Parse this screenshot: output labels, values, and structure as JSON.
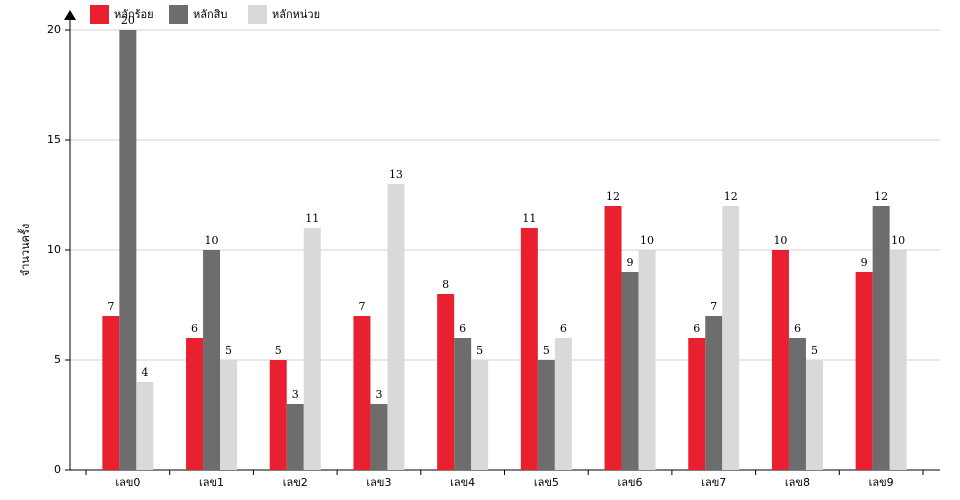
{
  "chart_data": {
    "type": "bar",
    "y_label": "จำนวนครั้ง",
    "categories": [
      "เลข0",
      "เลข1",
      "เลข2",
      "เลข3",
      "เลข4",
      "เลข5",
      "เลข6",
      "เลข7",
      "เลข8",
      "เลข9"
    ],
    "series": [
      {
        "name": "หลักร้อย",
        "color": "#e8202f",
        "values": [
          7,
          6,
          5,
          7,
          8,
          11,
          12,
          6,
          10,
          9
        ]
      },
      {
        "name": "หลักสิบ",
        "color": "#6d6d6d",
        "values": [
          20,
          10,
          3,
          3,
          6,
          5,
          9,
          7,
          6,
          12
        ]
      },
      {
        "name": "หลักหน่วย",
        "color": "#d9d9d9",
        "values": [
          4,
          5,
          11,
          13,
          5,
          6,
          10,
          12,
          5,
          10
        ]
      }
    ],
    "ylim": [
      0,
      20
    ],
    "yticks": [
      0,
      5,
      10,
      15,
      20
    ],
    "grid": true,
    "legend": "top-left"
  }
}
